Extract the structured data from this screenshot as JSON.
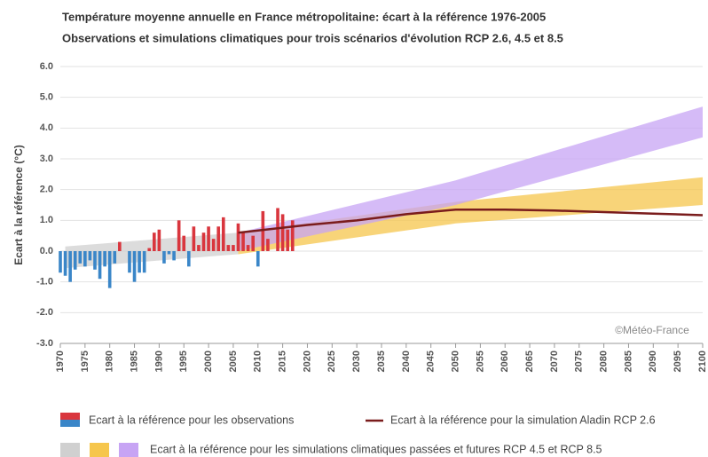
{
  "chart_data": {
    "type": "bar",
    "title": "Température moyenne annuelle en France métropolitaine: écart à la référence 1976-2005",
    "subtitle": "Observations et simulations climatiques pour trois scénarios d'évolution RCP 2.6, 4.5 et 8.5",
    "y_label": "Ecart à la référence (°C)",
    "watermark": "©Météo-France",
    "xlim": [
      1970,
      2100
    ],
    "xticks": [
      1970,
      1975,
      1980,
      1985,
      1990,
      1995,
      2000,
      2005,
      2010,
      2015,
      2020,
      2025,
      2030,
      2035,
      2040,
      2045,
      2050,
      2055,
      2060,
      2065,
      2070,
      2075,
      2080,
      2085,
      2090,
      2095,
      2100
    ],
    "ylim": [
      -3,
      6
    ],
    "yticks": [
      {
        "value": 6,
        "label": "6.0"
      },
      {
        "value": 5,
        "label": "5.0"
      },
      {
        "value": 4,
        "label": "4.0"
      },
      {
        "value": 3,
        "label": "3.0"
      },
      {
        "value": 2,
        "label": "2.0"
      },
      {
        "value": 1,
        "label": "1.0"
      },
      {
        "value": 0,
        "label": "0.0"
      },
      {
        "value": -1,
        "label": "-1.0"
      },
      {
        "value": -2,
        "label": "-2.0"
      },
      {
        "value": -3,
        "label": "-3.0"
      }
    ],
    "grid": true,
    "band_legend": "Ecart à la référence pour les simulations climatiques passées et futures RCP 4.5 et RCP 8.5",
    "series": [
      {
        "type": "area",
        "color": "#d0d0d0",
        "x": [
          1971,
          2006
        ],
        "lower": [
          -0.55,
          -0.1
        ],
        "upper": [
          0.15,
          0.6
        ]
      },
      {
        "type": "area",
        "color": "#f6c64c",
        "x": [
          2006,
          2050,
          2100
        ],
        "lower": [
          -0.1,
          0.9,
          1.5
        ],
        "upper": [
          0.6,
          1.6,
          2.4
        ]
      },
      {
        "type": "area",
        "color": "#c7a4f4",
        "x": [
          2006,
          2050,
          2100
        ],
        "lower": [
          0.0,
          1.5,
          3.7
        ],
        "upper": [
          0.6,
          2.3,
          4.7
        ]
      },
      {
        "type": "bar",
        "name": "Ecart à la référence pour les observations",
        "positive_color": "#d9363e",
        "negative_color": "#3a86c8",
        "x": [
          1970,
          1971,
          1972,
          1973,
          1974,
          1975,
          1976,
          1977,
          1978,
          1979,
          1980,
          1981,
          1982,
          1983,
          1984,
          1985,
          1986,
          1987,
          1988,
          1989,
          1990,
          1991,
          1992,
          1993,
          1994,
          1995,
          1996,
          1997,
          1998,
          1999,
          2000,
          2001,
          2002,
          2003,
          2004,
          2005,
          2006,
          2007,
          2008,
          2009,
          2010,
          2011,
          2012,
          2013,
          2014,
          2015,
          2016,
          2017
        ],
        "values": [
          -0.7,
          -0.8,
          -1.0,
          -0.6,
          -0.4,
          -0.5,
          -0.3,
          -0.6,
          -0.9,
          -0.5,
          -1.2,
          -0.4,
          0.3,
          0.0,
          -0.7,
          -1.0,
          -0.7,
          -0.7,
          0.1,
          0.6,
          0.7,
          -0.4,
          -0.1,
          -0.3,
          1.0,
          0.5,
          -0.5,
          0.8,
          0.2,
          0.6,
          0.8,
          0.4,
          0.8,
          1.1,
          0.2,
          0.2,
          0.9,
          0.6,
          0.2,
          0.5,
          -0.5,
          1.3,
          0.4,
          0.0,
          1.4,
          1.2,
          0.7,
          1.0
        ]
      },
      {
        "type": "line",
        "name": "Ecart à la référence pour la simulation Aladin RCP 2.6",
        "color": "#7a1c1c",
        "x": [
          2006,
          2020,
          2030,
          2040,
          2050,
          2060,
          2070,
          2080,
          2090,
          2100
        ],
        "values": [
          0.6,
          0.85,
          1.0,
          1.2,
          1.35,
          1.35,
          1.32,
          1.27,
          1.22,
          1.17
        ]
      }
    ]
  }
}
